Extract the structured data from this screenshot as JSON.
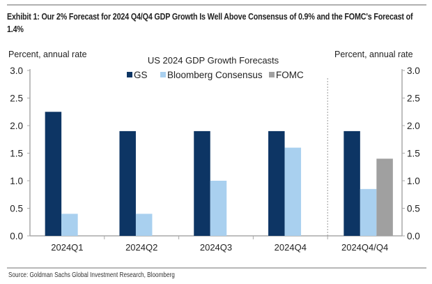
{
  "exhibit": {
    "title": "Exhibit 1: Our 2% Forecast for 2024 Q4/Q4 GDP Growth Is Well Above Consensus of 0.9% and the FOMC's Forecast of 1.4%",
    "source": "Source: Goldman Sachs Global Investment Research, Bloomberg"
  },
  "chart_data": {
    "type": "bar",
    "title": "US 2024 GDP Growth Forecasts",
    "ylabel_left": "Percent, annual rate",
    "ylabel_right": "Percent, annual rate",
    "xlabel": "",
    "ylim": [
      0,
      3.0
    ],
    "yticks": [
      0.0,
      0.5,
      1.0,
      1.5,
      2.0,
      2.5,
      3.0
    ],
    "ytick_labels": [
      "0.0",
      "0.5",
      "1.0",
      "1.5",
      "2.0",
      "2.5",
      "3.0"
    ],
    "grid": false,
    "legend_position": "top-center",
    "categories": [
      "2024Q1",
      "2024Q2",
      "2024Q3",
      "2024Q4",
      "2024Q4/Q4"
    ],
    "separator_after_category": "2024Q4",
    "series": [
      {
        "name": "GS",
        "color": "#0d3564",
        "values": [
          2.25,
          1.9,
          1.9,
          1.9,
          1.9
        ]
      },
      {
        "name": "Bloomberg Consensus",
        "color": "#a9d0ef",
        "values": [
          0.4,
          0.4,
          1.0,
          1.6,
          0.85
        ]
      },
      {
        "name": "FOMC",
        "color": "#a0a0a0",
        "values": [
          null,
          null,
          null,
          null,
          1.4
        ]
      }
    ]
  }
}
